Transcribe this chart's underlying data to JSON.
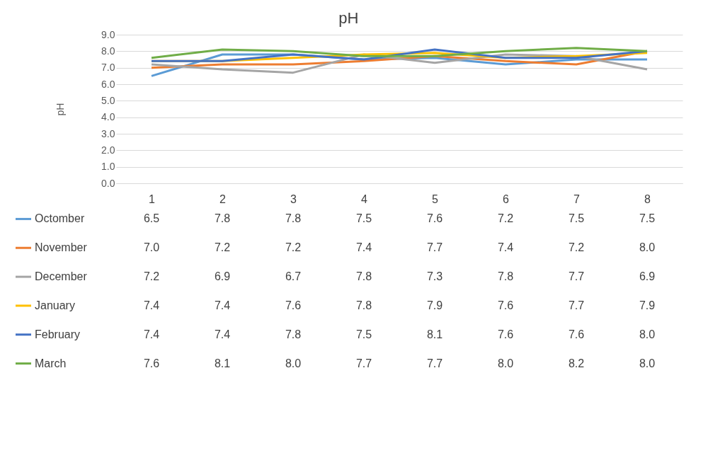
{
  "chart_data": {
    "type": "line",
    "title": "pH",
    "ylabel": "pH",
    "categories": [
      "1",
      "2",
      "3",
      "4",
      "5",
      "6",
      "7",
      "8"
    ],
    "series": [
      {
        "name": "Octomber",
        "color": "#5b9bd5",
        "values": [
          6.5,
          7.8,
          7.8,
          7.5,
          7.6,
          7.2,
          7.5,
          7.5
        ],
        "value_labels": [
          "6.5",
          "7.8",
          "7.8",
          "7.5",
          "7.6",
          "7.2",
          "7.5",
          "7.5"
        ]
      },
      {
        "name": "November",
        "color": "#ed7d31",
        "values": [
          7.0,
          7.2,
          7.2,
          7.4,
          7.7,
          7.4,
          7.2,
          8.0
        ],
        "value_labels": [
          "7.0",
          "7.2",
          "7.2",
          "7.4",
          "7.7",
          "7.4",
          "7.2",
          "8.0"
        ]
      },
      {
        "name": "December",
        "color": "#a5a5a5",
        "values": [
          7.2,
          6.9,
          6.7,
          7.8,
          7.3,
          7.8,
          7.7,
          6.9
        ],
        "value_labels": [
          "7.2",
          "6.9",
          "6.7",
          "7.8",
          "7.3",
          "7.8",
          "7.7",
          "6.9"
        ]
      },
      {
        "name": "January",
        "color": "#ffc000",
        "values": [
          7.4,
          7.4,
          7.6,
          7.8,
          7.9,
          7.6,
          7.7,
          7.9
        ],
        "value_labels": [
          "7.4",
          "7.4",
          "7.6",
          "7.8",
          "7.9",
          "7.6",
          "7.7",
          "7.9"
        ]
      },
      {
        "name": "February",
        "color": "#4472c4",
        "values": [
          7.4,
          7.4,
          7.8,
          7.5,
          8.1,
          7.6,
          7.6,
          8.0
        ],
        "value_labels": [
          "7.4",
          "7.4",
          "7.8",
          "7.5",
          "8.1",
          "7.6",
          "7.6",
          "8.0"
        ]
      },
      {
        "name": "March",
        "color": "#70ad47",
        "values": [
          7.6,
          8.1,
          8.0,
          7.7,
          7.7,
          8.0,
          8.2,
          8.0
        ],
        "value_labels": [
          "7.6",
          "8.1",
          "8.0",
          "7.7",
          "7.7",
          "8.0",
          "8.2",
          "8.0"
        ]
      }
    ],
    "ylim": [
      0,
      9
    ],
    "yticks": [
      {
        "value": 0,
        "label": "0.0"
      },
      {
        "value": 1,
        "label": "1.0"
      },
      {
        "value": 2,
        "label": "2.0"
      },
      {
        "value": 3,
        "label": "3.0"
      },
      {
        "value": 4,
        "label": "4.0"
      },
      {
        "value": 5,
        "label": "5.0"
      },
      {
        "value": 6,
        "label": "6.0"
      },
      {
        "value": 7,
        "label": "7.0"
      },
      {
        "value": 8,
        "label": "8.0"
      },
      {
        "value": 9,
        "label": "9.0"
      }
    ],
    "grid": "y",
    "legend": "bottom",
    "marker": "none",
    "line_style": "solid"
  }
}
